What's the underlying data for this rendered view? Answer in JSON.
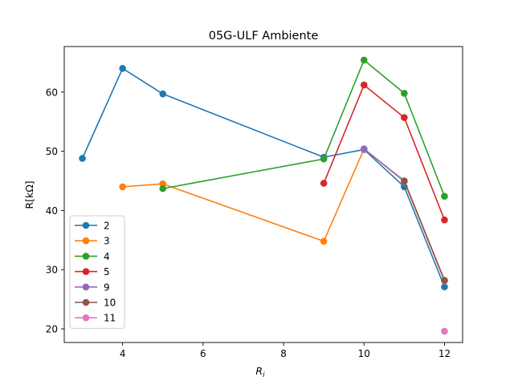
{
  "chart_data": {
    "type": "line",
    "title": "05G-ULF Ambiente",
    "xlabel": "R",
    "xlabel_subscript": "i",
    "ylabel": "R[kΩ]",
    "xlim": [
      2.55,
      12.45
    ],
    "ylim": [
      17.7,
      67.7
    ],
    "xticks": [
      4,
      6,
      8,
      10,
      12
    ],
    "yticks": [
      20,
      30,
      40,
      50,
      60
    ],
    "grid": false,
    "legend_position": "lower-left",
    "marker": "circle",
    "series": [
      {
        "name": "2",
        "color": "#1f77b4",
        "x": [
          3,
          4,
          5,
          9,
          10,
          11,
          12
        ],
        "y": [
          48.8,
          64.0,
          59.7,
          49.0,
          50.3,
          44.0,
          27.1
        ]
      },
      {
        "name": "3",
        "color": "#ff7f0e",
        "x": [
          4,
          5,
          9,
          10,
          11,
          12
        ],
        "y": [
          44.0,
          44.5,
          34.8,
          50.4,
          44.9,
          28.1
        ]
      },
      {
        "name": "4",
        "color": "#2ca02c",
        "x": [
          5,
          9,
          10,
          11,
          12
        ],
        "y": [
          43.7,
          48.7,
          65.4,
          59.8,
          42.4
        ]
      },
      {
        "name": "5",
        "color": "#d62728",
        "x": [
          9,
          10,
          11,
          12
        ],
        "y": [
          44.6,
          61.2,
          55.7,
          38.4
        ]
      },
      {
        "name": "9",
        "color": "#9467bd",
        "x": [
          10,
          11,
          12
        ],
        "y": [
          50.4,
          45.0,
          28.2
        ]
      },
      {
        "name": "10",
        "color": "#8c564b",
        "x": [
          11,
          12
        ],
        "y": [
          45.0,
          28.2
        ]
      },
      {
        "name": "11",
        "color": "#e377c2",
        "x": [
          12
        ],
        "y": [
          19.6
        ]
      }
    ]
  }
}
